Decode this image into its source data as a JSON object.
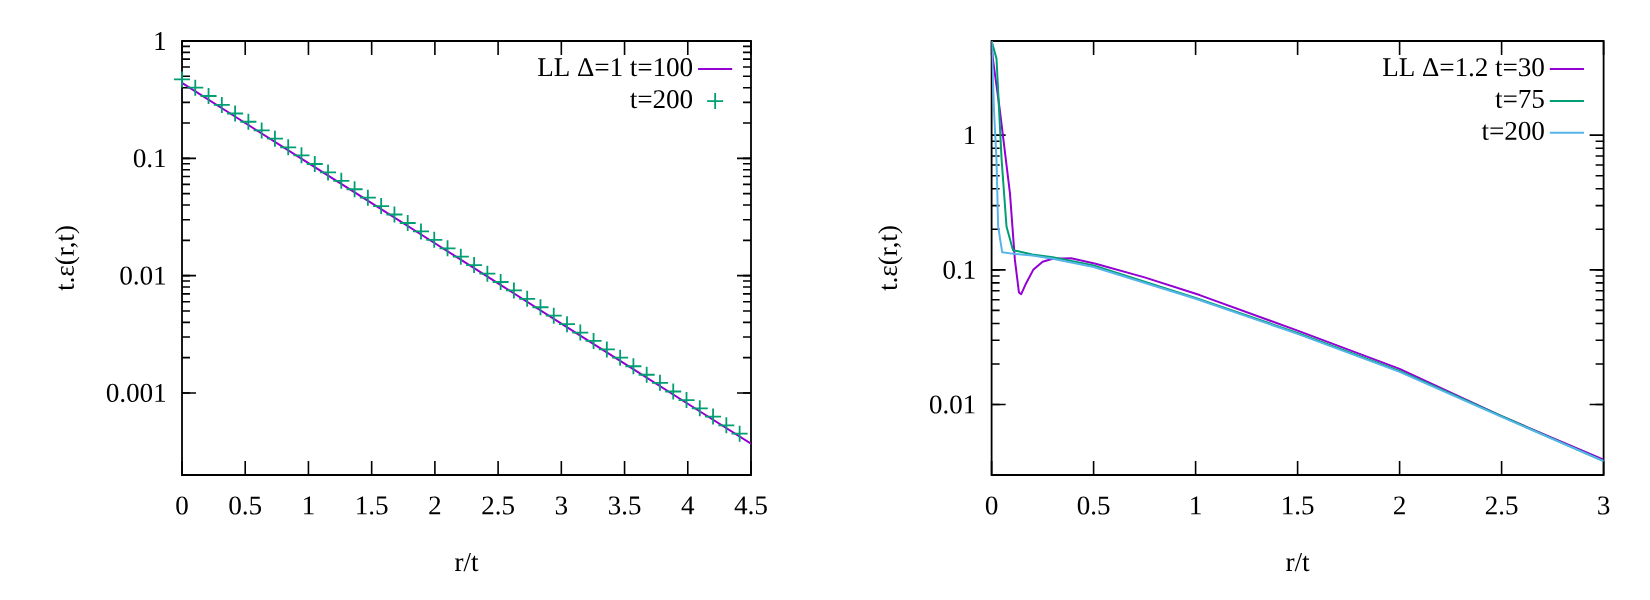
{
  "chart_data": [
    {
      "type": "line",
      "xlabel": "r/t",
      "ylabel": "t.ε(r,t)",
      "log": "y",
      "legend": "top right",
      "xlim": [
        0,
        4.5
      ],
      "xticks": [
        0,
        0.5,
        1,
        1.5,
        2,
        2.5,
        3,
        3.5,
        4,
        4.5
      ],
      "ylim": [
        0.0002,
        1
      ],
      "yticks": [
        0.001,
        0.01,
        0.1,
        1
      ],
      "series": [
        {
          "name": "LL Δ=1 t=100",
          "color": "#9400d3",
          "x": [
            0,
            0.5,
            1,
            1.5,
            2,
            2.5,
            3,
            3.5,
            4,
            4.5
          ],
          "values": [
            0.44,
            0.2,
            0.091,
            0.0415,
            0.0189,
            0.0086,
            0.0039,
            0.00178,
            0.00081,
            0.00037
          ]
        },
        {
          "name": "t=200",
          "type": "scatter",
          "marker": "cross",
          "color": "#009e73",
          "x": [
            0,
            0.105,
            0.21,
            0.315,
            0.42,
            0.525,
            0.63,
            0.735,
            0.84,
            0.945,
            1.05,
            1.155,
            1.26,
            1.365,
            1.47,
            1.575,
            1.68,
            1.785,
            1.89,
            1.995,
            2.1,
            2.205,
            2.31,
            2.415,
            2.52,
            2.625,
            2.73,
            2.835,
            2.94,
            3.045,
            3.15,
            3.255,
            3.36,
            3.465,
            3.57,
            3.675,
            3.78,
            3.885,
            3.99,
            4.095,
            4.2,
            4.305,
            4.41
          ],
          "values": [
            0.47,
            0.4,
            0.34,
            0.285,
            0.241,
            0.205,
            0.173,
            0.147,
            0.124,
            0.106,
            0.0895,
            0.0759,
            0.0643,
            0.0545,
            0.0462,
            0.0392,
            0.0332,
            0.0281,
            0.0238,
            0.0202,
            0.0171,
            0.0145,
            0.0123,
            0.0104,
            0.00883,
            0.00748,
            0.00635,
            0.00538,
            0.00456,
            0.00386,
            0.00327,
            0.00278,
            0.00235,
            0.002,
            0.00169,
            0.00143,
            0.00122,
            0.00103,
            0.00087,
            0.00074,
            0.00063,
            0.00053,
            0.00045
          ]
        }
      ]
    },
    {
      "type": "line",
      "xlabel": "r/t",
      "ylabel": "t.ε(r,t)",
      "log": "y",
      "legend": "top right",
      "xlim": [
        0,
        3
      ],
      "xticks": [
        0,
        0.5,
        1,
        1.5,
        2,
        2.5,
        3
      ],
      "ylim": [
        0.003,
        5
      ],
      "yticks": [
        0.01,
        0.1,
        1
      ],
      "series": [
        {
          "name": "LL Δ=1.2 t=30",
          "color": "#9400d3",
          "x": [
            0,
            0.006,
            0.04,
            0.09,
            0.114,
            0.134,
            0.145,
            0.17,
            0.204,
            0.25,
            0.3,
            0.39,
            0.51,
            0.75,
            1.02,
            1.5,
            2.0,
            2.5,
            3.0
          ],
          "values": [
            5.0,
            3.7,
            1.55,
            0.37,
            0.119,
            0.068,
            0.066,
            0.08,
            0.1,
            0.115,
            0.121,
            0.122,
            0.111,
            0.088,
            0.065,
            0.0354,
            0.0184,
            0.0082,
            0.0039
          ]
        },
        {
          "name": "t=75",
          "color": "#009e73",
          "x": [
            0,
            0.024,
            0.049,
            0.073,
            0.105,
            0.2,
            0.3,
            0.5,
            1.0,
            1.5,
            2.0,
            2.5,
            3.0
          ],
          "values": [
            5.0,
            3.7,
            0.66,
            0.21,
            0.14,
            0.13,
            0.124,
            0.108,
            0.062,
            0.034,
            0.0178,
            0.0082,
            0.0038
          ]
        },
        {
          "name": "t=200",
          "color": "#56b4e9",
          "x": [
            0,
            0.012,
            0.024,
            0.032,
            0.052,
            0.1,
            0.2,
            0.3,
            0.5,
            1.0,
            1.5,
            2.0,
            2.5,
            3.0
          ],
          "values": [
            5.0,
            1.5,
            0.66,
            0.21,
            0.135,
            0.132,
            0.128,
            0.121,
            0.105,
            0.061,
            0.0335,
            0.0175,
            0.0081,
            0.0038
          ]
        }
      ]
    }
  ]
}
